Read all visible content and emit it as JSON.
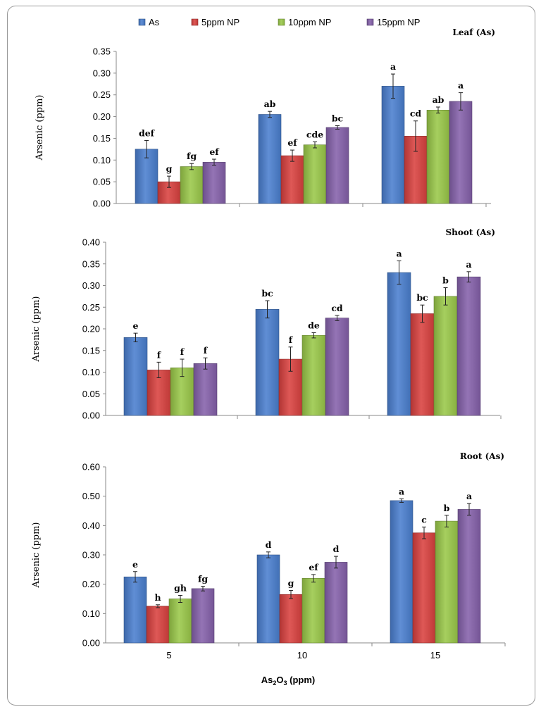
{
  "chart_data": {
    "type": "bar",
    "legend": [
      "As",
      "5ppm NP",
      "10ppm NP",
      "15ppm NP"
    ],
    "colors": [
      "#4a7fcf",
      "#d9413f",
      "#9ac849",
      "#8561ab"
    ],
    "categories": [
      "5",
      "10",
      "15"
    ],
    "xlabel": "As2O3 (ppm)",
    "xlabel_parts": {
      "pre": "As",
      "sub1": "2",
      "mid": "O",
      "sub2": "3",
      "post": " (ppm)"
    },
    "panels": [
      {
        "title": "Leaf (As)",
        "ylabel": "Arsenic (ppm)",
        "ylim": [
          0,
          0.35
        ],
        "yticks": [
          "0.00",
          "0.05",
          "0.10",
          "0.15",
          "0.20",
          "0.25",
          "0.30",
          "0.35"
        ],
        "series": [
          {
            "name": "As",
            "values": [
              0.125,
              0.205,
              0.27
            ],
            "errors": [
              0.02,
              0.007,
              0.028
            ],
            "letters": [
              "def",
              "ab",
              "a"
            ]
          },
          {
            "name": "5ppm NP",
            "values": [
              0.05,
              0.11,
              0.155
            ],
            "errors": [
              0.013,
              0.013,
              0.035
            ],
            "letters": [
              "g",
              "ef",
              "cd"
            ]
          },
          {
            "name": "10ppm NP",
            "values": [
              0.085,
              0.135,
              0.215
            ],
            "errors": [
              0.007,
              0.007,
              0.007
            ],
            "letters": [
              "fg",
              "cde",
              "ab"
            ]
          },
          {
            "name": "15ppm NP",
            "values": [
              0.095,
              0.175,
              0.235
            ],
            "errors": [
              0.007,
              0.004,
              0.02
            ],
            "letters": [
              "ef",
              "bc",
              "a"
            ]
          }
        ]
      },
      {
        "title": "Shoot (As)",
        "ylabel": "Arsenic (ppm)",
        "ylim": [
          0,
          0.4
        ],
        "yticks": [
          "0.00",
          "0.05",
          "0.10",
          "0.15",
          "0.20",
          "0.25",
          "0.30",
          "0.35",
          "0.40"
        ],
        "series": [
          {
            "name": "As",
            "values": [
              0.18,
              0.245,
              0.33
            ],
            "errors": [
              0.01,
              0.02,
              0.027
            ],
            "letters": [
              "e",
              "bc",
              "a"
            ]
          },
          {
            "name": "5ppm NP",
            "values": [
              0.105,
              0.13,
              0.235
            ],
            "errors": [
              0.018,
              0.028,
              0.02
            ],
            "letters": [
              "f",
              "f",
              "bc"
            ]
          },
          {
            "name": "10ppm NP",
            "values": [
              0.11,
              0.185,
              0.275
            ],
            "errors": [
              0.02,
              0.006,
              0.02
            ],
            "letters": [
              "f",
              "de",
              "b"
            ]
          },
          {
            "name": "15ppm NP",
            "values": [
              0.12,
              0.225,
              0.32
            ],
            "errors": [
              0.013,
              0.006,
              0.012
            ],
            "letters": [
              "f",
              "cd",
              "a"
            ]
          }
        ]
      },
      {
        "title": "Root (As)",
        "ylabel": "Arsenic (ppm)",
        "ylim": [
          0,
          0.6
        ],
        "yticks": [
          "0.00",
          "0.10",
          "0.20",
          "0.30",
          "0.40",
          "0.50",
          "0.60"
        ],
        "series": [
          {
            "name": "As",
            "values": [
              0.225,
              0.3,
              0.485
            ],
            "errors": [
              0.018,
              0.01,
              0.006
            ],
            "letters": [
              "e",
              "d",
              "a"
            ]
          },
          {
            "name": "5ppm NP",
            "values": [
              0.125,
              0.165,
              0.375
            ],
            "errors": [
              0.005,
              0.014,
              0.02
            ],
            "letters": [
              "h",
              "g",
              "c"
            ]
          },
          {
            "name": "10ppm NP",
            "values": [
              0.15,
              0.22,
              0.415
            ],
            "errors": [
              0.012,
              0.013,
              0.02
            ],
            "letters": [
              "gh",
              "ef",
              "b"
            ]
          },
          {
            "name": "15ppm NP",
            "values": [
              0.185,
              0.275,
              0.455
            ],
            "errors": [
              0.008,
              0.02,
              0.02
            ],
            "letters": [
              "fg",
              "d",
              "a"
            ]
          }
        ]
      }
    ]
  }
}
